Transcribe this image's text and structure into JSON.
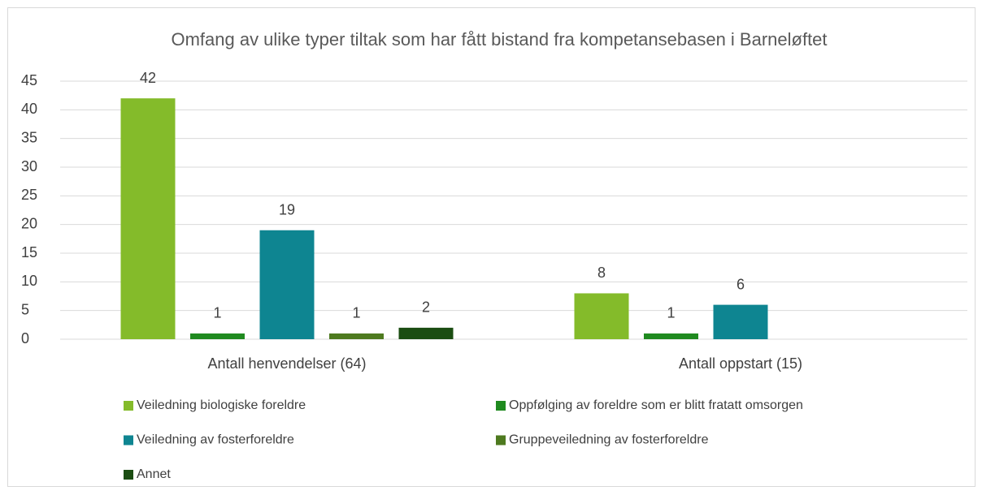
{
  "chart_data": {
    "type": "bar",
    "title": "Omfang av ulike typer tiltak som har fått bistand fra kompetansebasen i Barneløftet",
    "categories": [
      "Antall henvendelser (64)",
      "Antall oppstart (15)"
    ],
    "series": [
      {
        "name": "Veiledning biologiske foreldre",
        "color": "#84bb2a",
        "values": [
          42,
          8
        ]
      },
      {
        "name": "Oppfølging av foreldre som er blitt fratatt omsorgen",
        "color": "#1f8a1f",
        "values": [
          1,
          1
        ]
      },
      {
        "name": "Veiledning av fosterforeldre",
        "color": "#0e8591",
        "values": [
          19,
          6
        ]
      },
      {
        "name": "Gruppeveiledning av fosterforeldre",
        "color": "#4e7a1f",
        "values": [
          1,
          null
        ]
      },
      {
        "name": "Annet",
        "color": "#1b4d12",
        "values": [
          2,
          null
        ]
      }
    ],
    "ylim": [
      0,
      45
    ],
    "yticks": [
      0,
      5,
      10,
      15,
      20,
      25,
      30,
      35,
      40,
      45
    ],
    "grid": true,
    "legend": "bottom"
  }
}
